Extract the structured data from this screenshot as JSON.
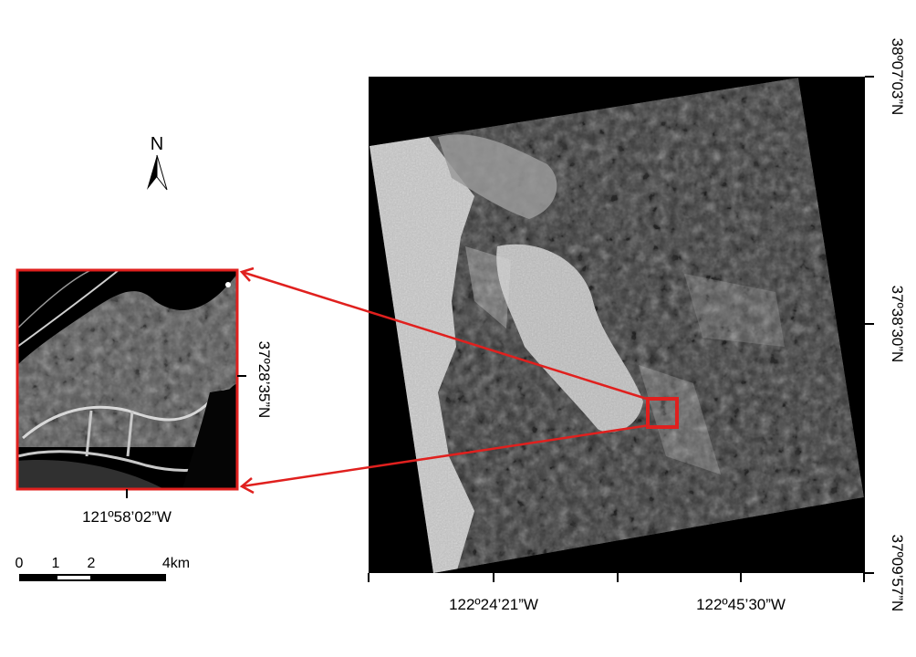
{
  "north_arrow": {
    "label": "N"
  },
  "inset": {
    "lat_label": "37º28’35”N",
    "lon_label": "121º58’02”W"
  },
  "scale_bar": {
    "labels": [
      "0",
      "1",
      "2",
      "4km"
    ]
  },
  "main_map": {
    "lat_labels": [
      "38º07’03”N",
      "37º38’30”N",
      "37º09’57”N"
    ],
    "lon_labels": [
      "122º24’21”W",
      "122º45’30”W"
    ]
  },
  "colors": {
    "highlight": "#e0201e",
    "frame": "#000000",
    "sar_dark": "#1c1c1c",
    "water": "#bdbdbd"
  }
}
